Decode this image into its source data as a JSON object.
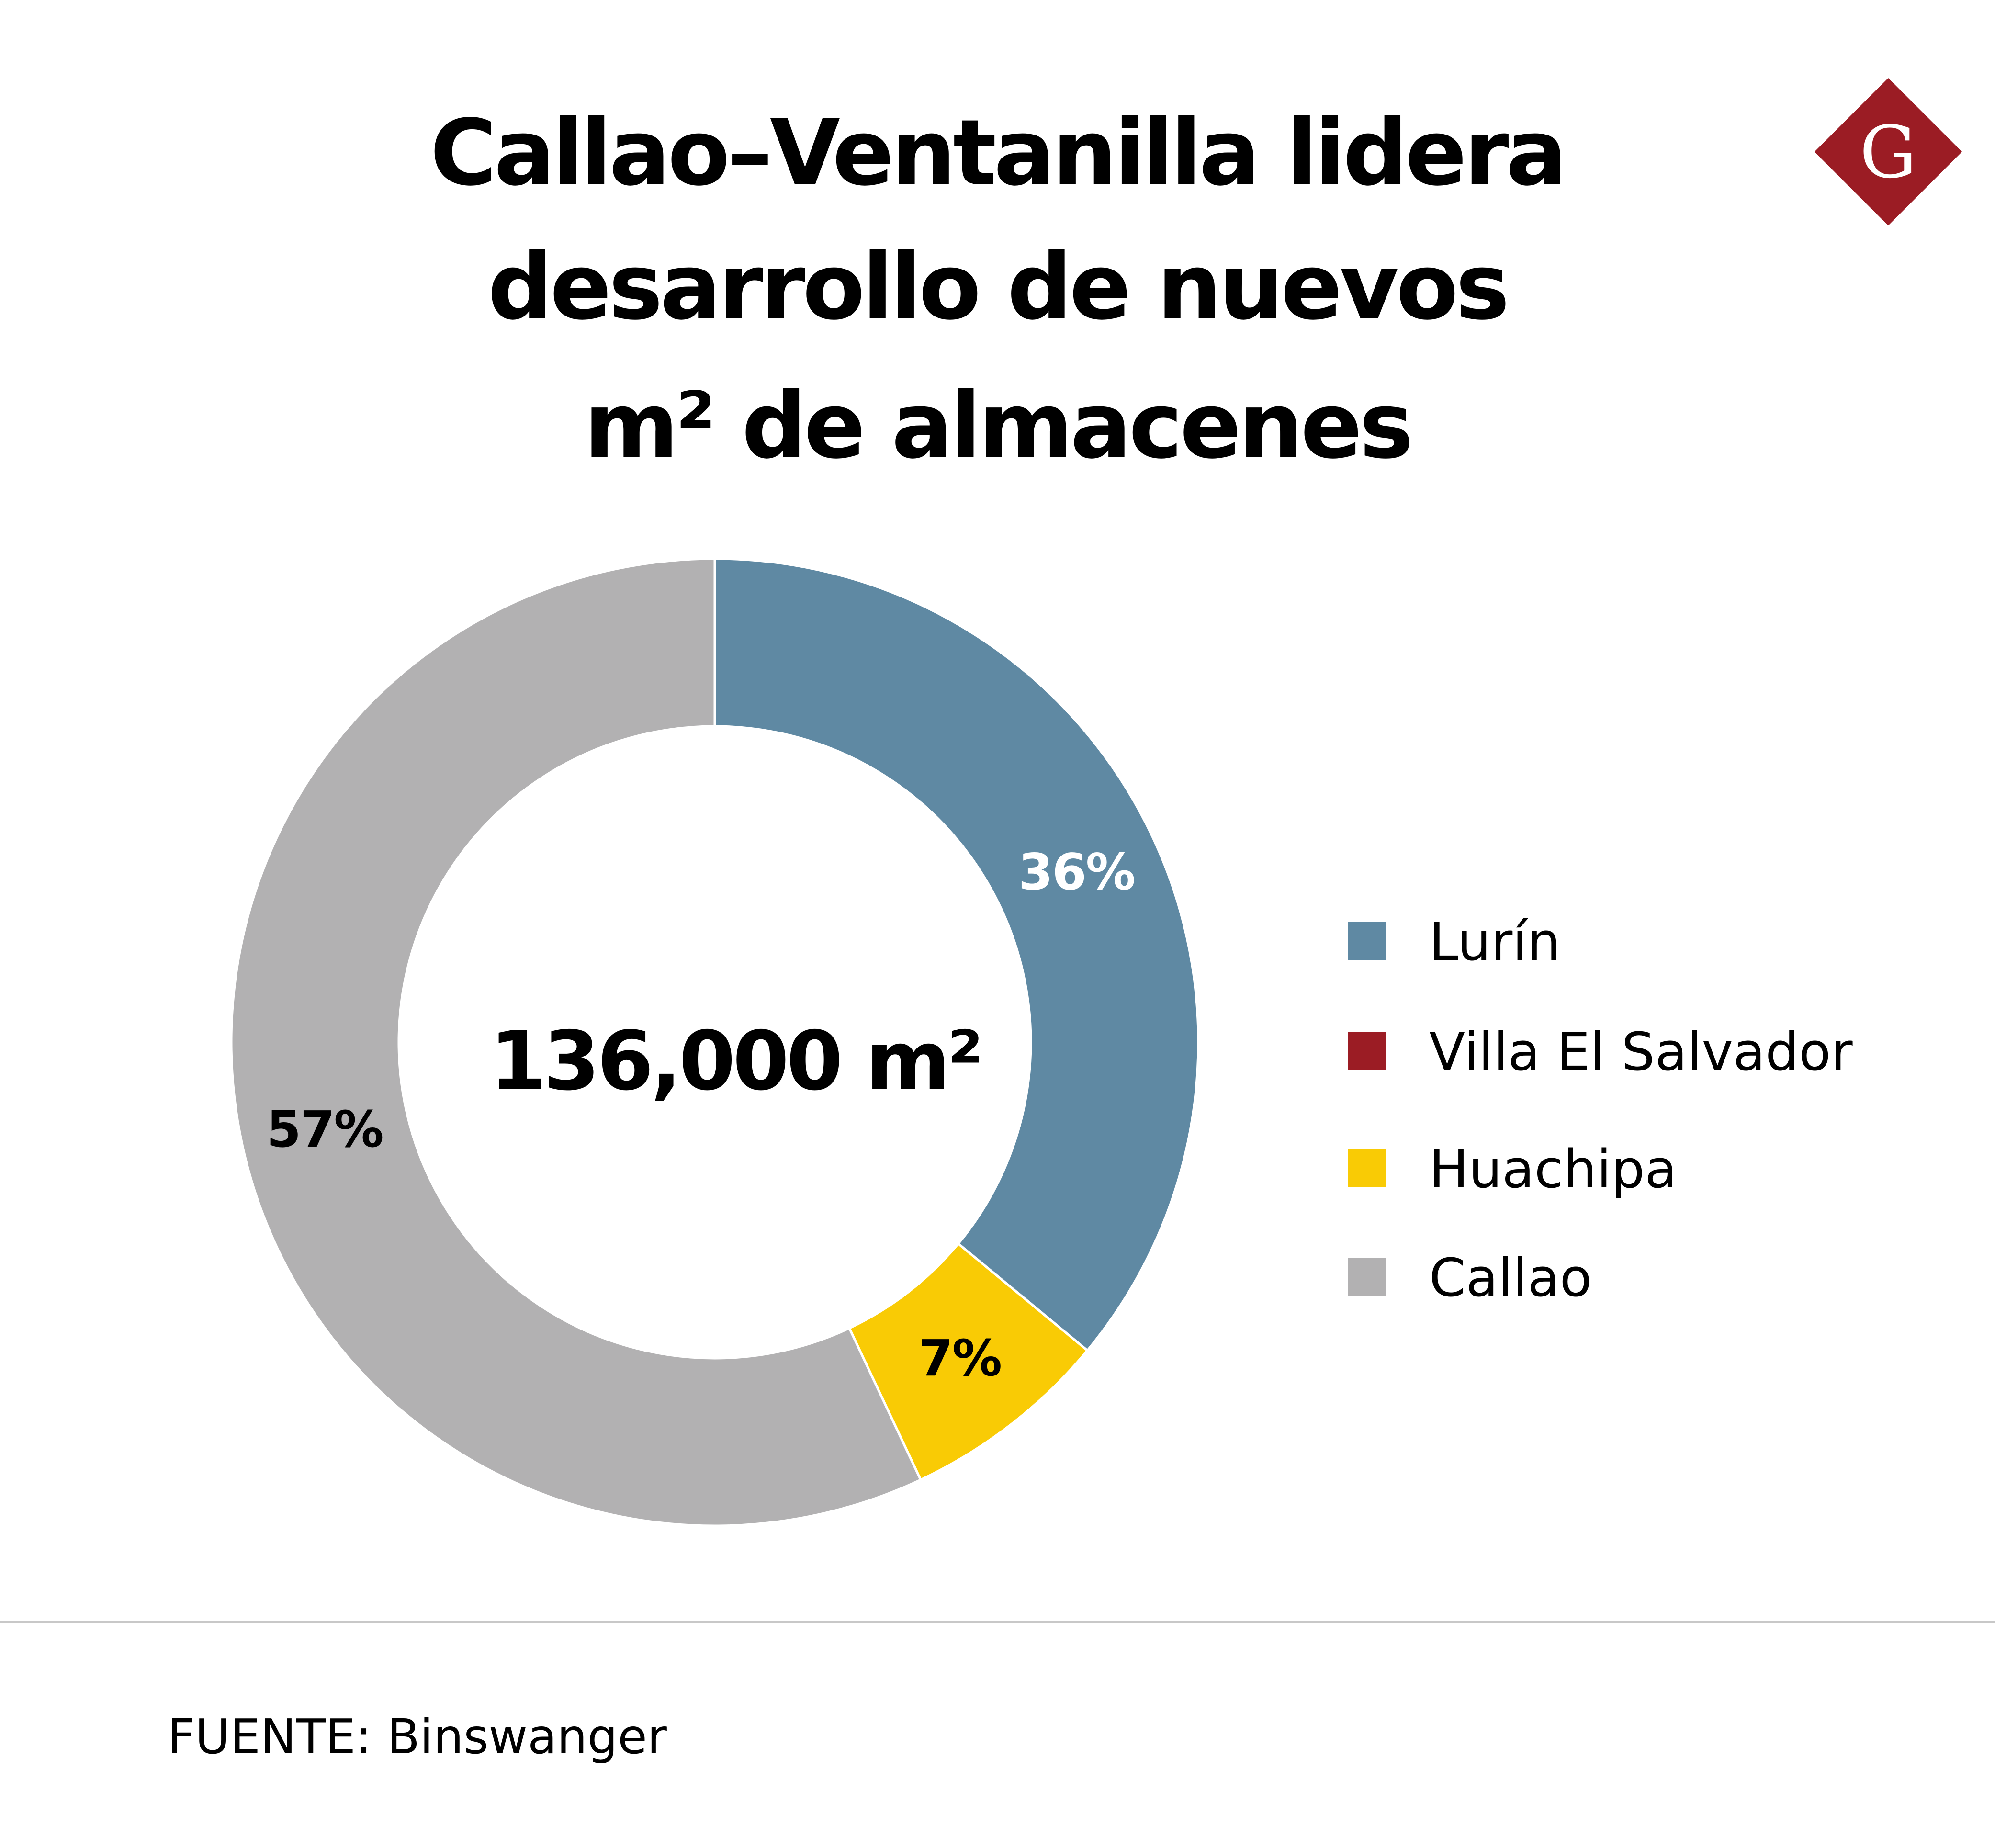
{
  "header": {
    "title_lines": [
      "Callao–Ventanilla lidera",
      "desarrollo de nuevos",
      "m² de almacenes"
    ]
  },
  "logo": {
    "letter": "G",
    "color": "#9b1c24",
    "icon": "g-diamond-logo-icon"
  },
  "chart_data": {
    "type": "pie",
    "variant": "donut",
    "center_label": "136,000 m²",
    "legend_position": "right",
    "slices": [
      {
        "name": "Lurín",
        "value": 36,
        "label": "36%",
        "color": "#5f89a3",
        "label_color": "#ffffff"
      },
      {
        "name": "Villa El Salvador",
        "value": 0,
        "label": "",
        "color": "#9b1c24",
        "label_color": "#000000"
      },
      {
        "name": "Huachipa",
        "value": 7,
        "label": "7%",
        "color": "#f9cb05",
        "label_color": "#000000"
      },
      {
        "name": "Callao",
        "value": 57,
        "label": "57%",
        "color": "#b2b1b2",
        "label_color": "#000000"
      }
    ]
  },
  "footer": {
    "source": "FUENTE: Binswanger"
  }
}
